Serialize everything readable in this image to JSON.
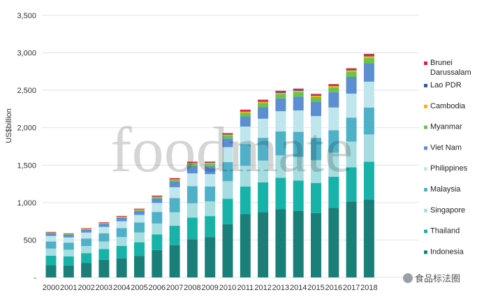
{
  "watermark": {
    "text": "foodmate",
    "badge": "食品标法圈"
  },
  "chart_data": {
    "type": "bar",
    "stacked": true,
    "title": "",
    "xlabel": "",
    "ylabel": "US$billion",
    "ylim": [
      0,
      3500
    ],
    "yticks": [
      "-",
      "500",
      "1,000",
      "1,500",
      "2,000",
      "2,500",
      "3,000",
      "3,500"
    ],
    "ytick_values": [
      0,
      500,
      1000,
      1500,
      2000,
      2500,
      3000,
      3500
    ],
    "grid": true,
    "legend_position": "right",
    "categories": [
      "2000",
      "2001",
      "2002",
      "2003",
      "2004",
      "2005",
      "2006",
      "2007",
      "2008",
      "2009",
      "2010",
      "2011",
      "2012",
      "2013",
      "2014",
      "2015",
      "2016",
      "2017",
      "2018"
    ],
    "series": [
      {
        "name": "Indonesia",
        "color": "#1a7f78",
        "values": [
          165,
          160,
          195,
          235,
          255,
          285,
          365,
          430,
          510,
          540,
          710,
          845,
          875,
          910,
          890,
          860,
          930,
          1015,
          1040
        ]
      },
      {
        "name": "Thailand",
        "color": "#17b3a8",
        "values": [
          125,
          120,
          130,
          145,
          165,
          185,
          210,
          260,
          290,
          280,
          340,
          370,
          395,
          420,
          405,
          400,
          415,
          455,
          505
        ]
      },
      {
        "name": "Singapore",
        "color": "#a6dde0",
        "values": [
          95,
          90,
          95,
          100,
          120,
          130,
          145,
          180,
          190,
          195,
          235,
          275,
          290,
          300,
          315,
          305,
          320,
          345,
          365
        ]
      },
      {
        "name": "Malaysia",
        "color": "#4eb1c8",
        "values": [
          95,
          95,
          100,
          110,
          120,
          135,
          155,
          190,
          230,
          200,
          255,
          290,
          305,
          320,
          335,
          300,
          300,
          320,
          360
        ]
      },
      {
        "name": "Philippines",
        "color": "#bfe6ec",
        "values": [
          75,
          70,
          80,
          85,
          90,
          100,
          120,
          145,
          170,
          165,
          200,
          235,
          255,
          270,
          285,
          290,
          305,
          320,
          345
        ]
      },
      {
        "name": "Viet Nam",
        "color": "#5b8fd0",
        "values": [
          33,
          35,
          37,
          40,
          46,
          52,
          61,
          77,
          99,
          106,
          116,
          136,
          156,
          171,
          186,
          193,
          205,
          224,
          245
        ]
      },
      {
        "name": "Myanmar",
        "color": "#6cc24a",
        "values": [
          8,
          8,
          8,
          9,
          10,
          12,
          15,
          20,
          28,
          34,
          40,
          50,
          55,
          58,
          60,
          60,
          62,
          65,
          70
        ]
      },
      {
        "name": "Cambodia",
        "color": "#f7b500",
        "values": [
          4,
          4,
          4,
          5,
          5,
          6,
          7,
          9,
          10,
          10,
          11,
          13,
          14,
          15,
          17,
          18,
          20,
          22,
          24
        ]
      },
      {
        "name": "Lao PDR",
        "color": "#2f5da8",
        "values": [
          2,
          2,
          2,
          2,
          3,
          3,
          4,
          4,
          5,
          6,
          7,
          8,
          10,
          11,
          12,
          13,
          14,
          16,
          18
        ]
      },
      {
        "name": "Brunei Darussalam",
        "color": "#e21e3c",
        "values": [
          6,
          6,
          7,
          7,
          8,
          10,
          11,
          12,
          14,
          11,
          14,
          19,
          19,
          18,
          17,
          13,
          11,
          12,
          14
        ]
      }
    ]
  }
}
